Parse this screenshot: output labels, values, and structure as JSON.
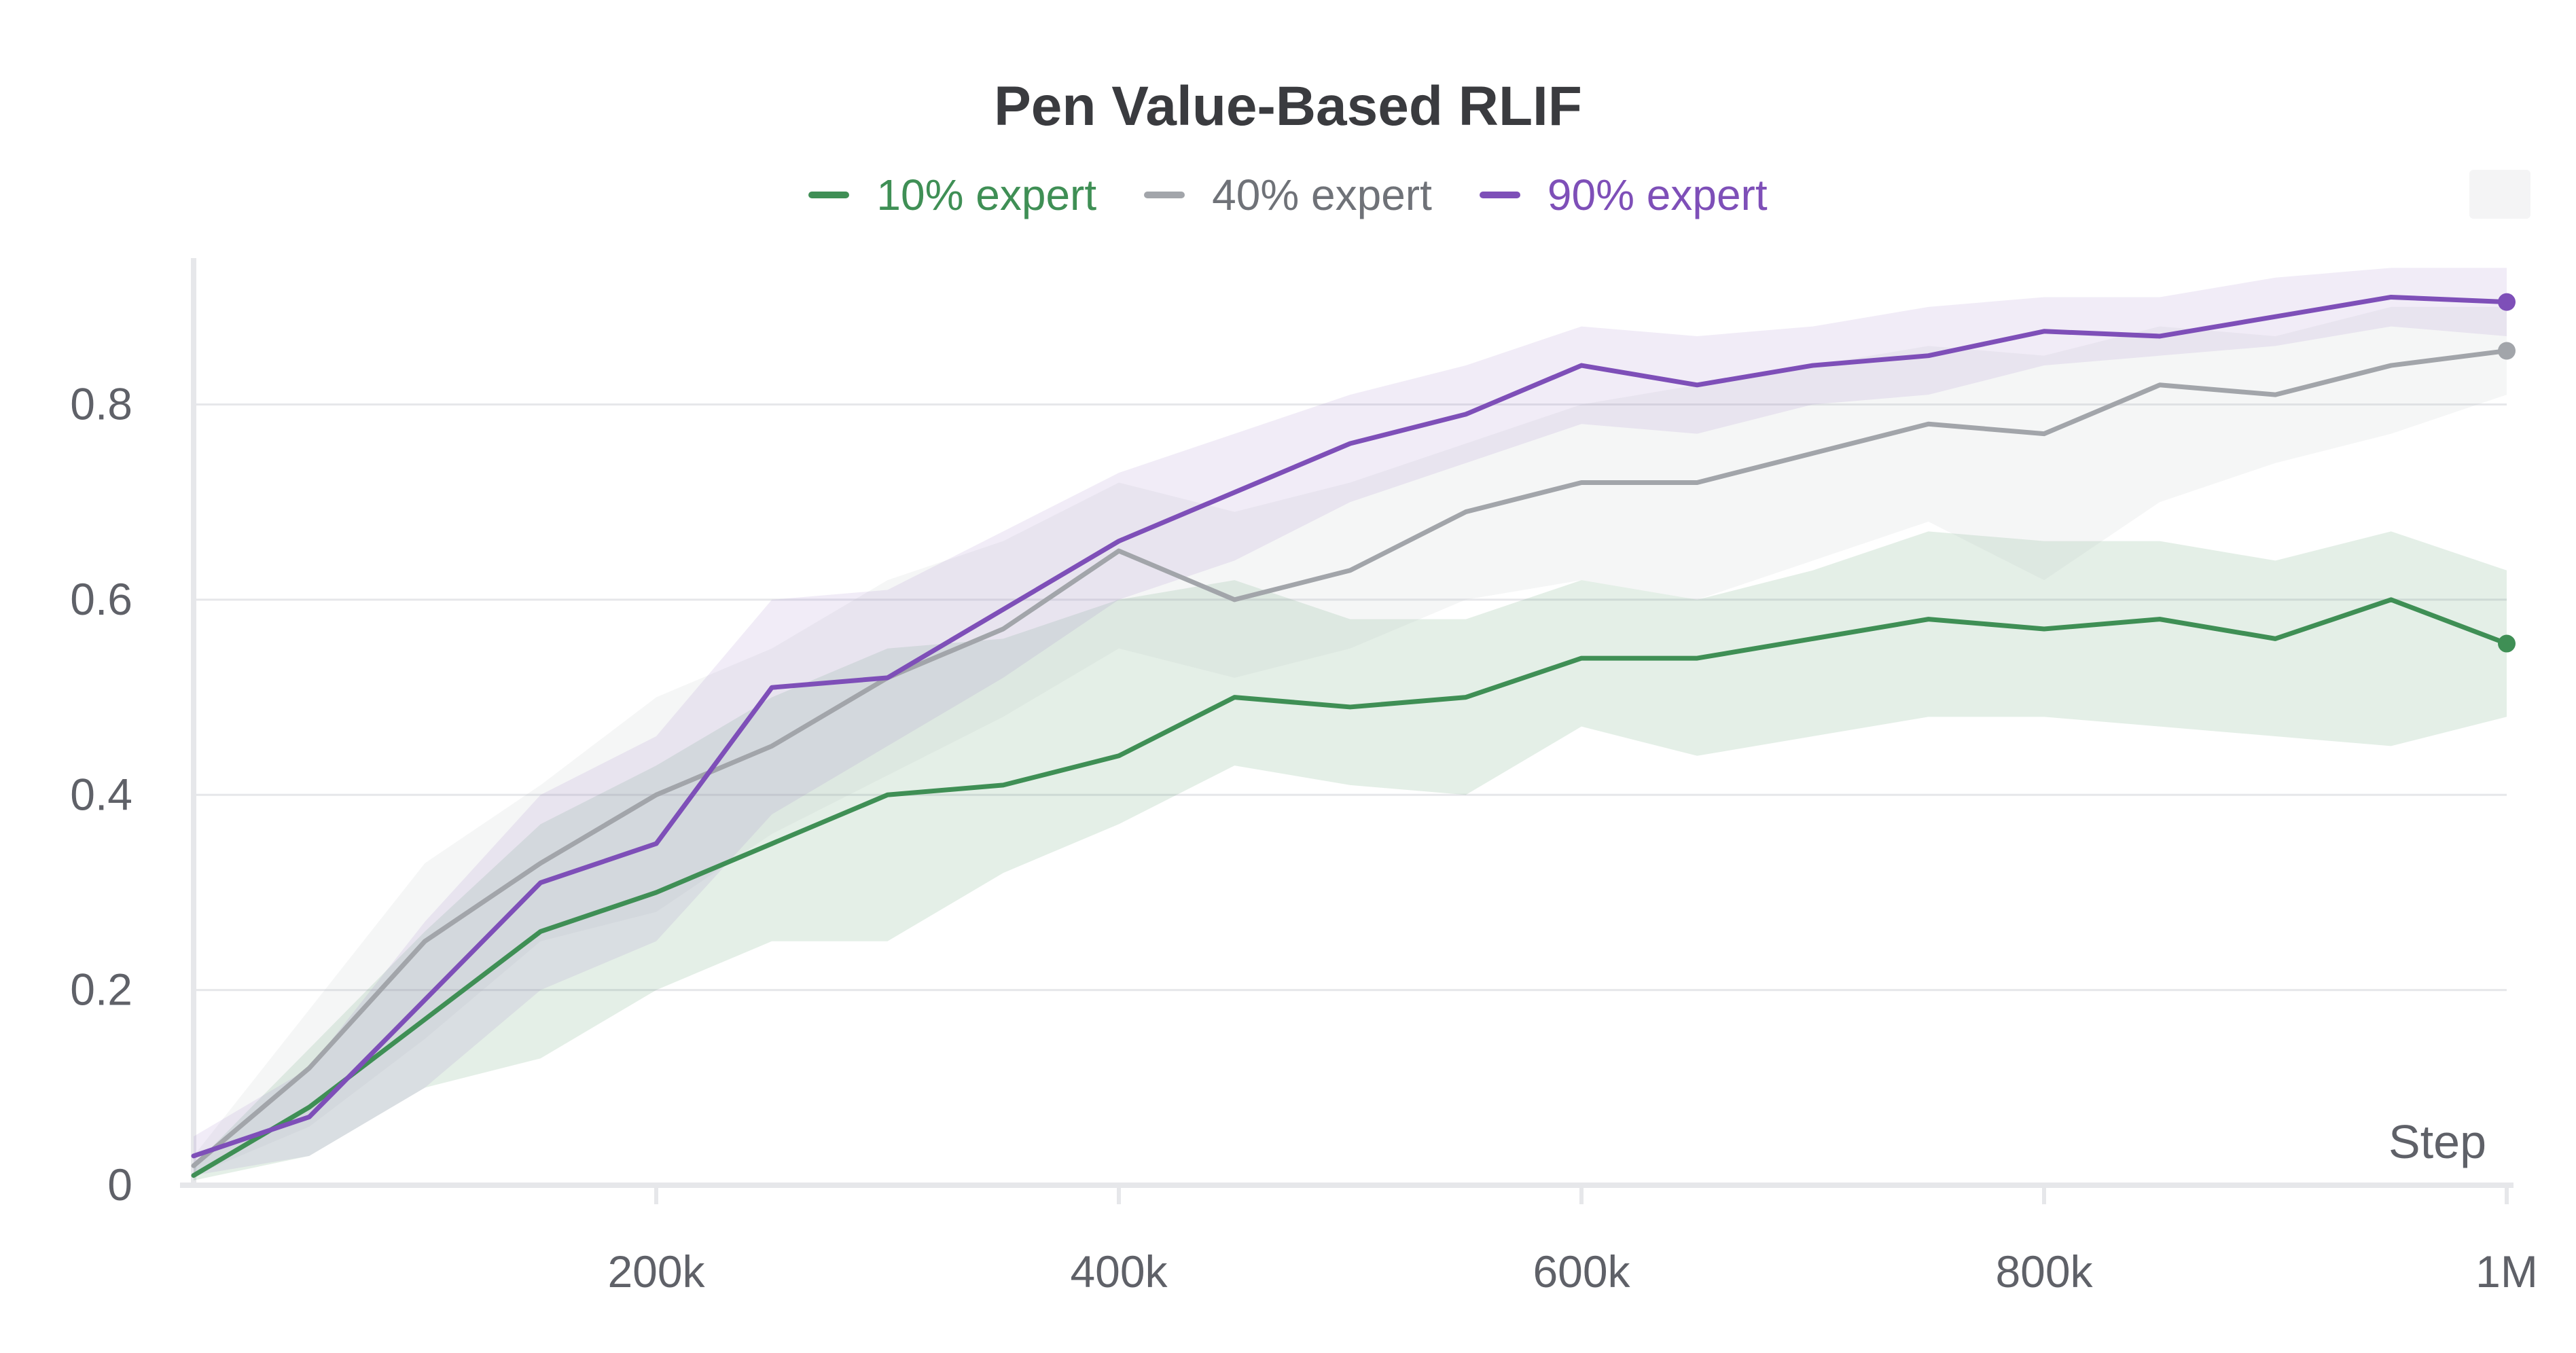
{
  "chart_data": {
    "type": "line",
    "title": "Pen Value-Based RLIF",
    "xlabel": "Step",
    "ylabel": "",
    "xlim": [
      0,
      1000000
    ],
    "ylim": [
      0,
      0.95
    ],
    "x_ticks": [
      200000,
      400000,
      600000,
      800000,
      1000000
    ],
    "x_tick_labels": [
      "200k",
      "400k",
      "600k",
      "800k",
      "1M"
    ],
    "y_ticks": [
      0,
      0.2,
      0.4,
      0.6,
      0.8
    ],
    "y_tick_labels": [
      "0",
      "0.2",
      "0.4",
      "0.6",
      "0.8"
    ],
    "grid": true,
    "legend_position": "top-center",
    "x": [
      0,
      50000,
      100000,
      150000,
      200000,
      250000,
      300000,
      350000,
      400000,
      450000,
      500000,
      550000,
      600000,
      650000,
      700000,
      750000,
      800000,
      850000,
      900000,
      950000,
      1000000
    ],
    "series": [
      {
        "name": "10% expert",
        "color": "#3f8f55",
        "band_color": "#3f8f55",
        "values": [
          0.01,
          0.08,
          0.17,
          0.26,
          0.3,
          0.35,
          0.4,
          0.41,
          0.44,
          0.5,
          0.49,
          0.5,
          0.54,
          0.54,
          0.56,
          0.58,
          0.57,
          0.58,
          0.56,
          0.6,
          0.555
        ],
        "lower": [
          0.005,
          0.03,
          0.1,
          0.13,
          0.2,
          0.25,
          0.25,
          0.32,
          0.37,
          0.43,
          0.41,
          0.4,
          0.47,
          0.44,
          0.46,
          0.48,
          0.48,
          0.47,
          0.46,
          0.45,
          0.48
        ],
        "upper": [
          0.02,
          0.14,
          0.26,
          0.37,
          0.43,
          0.5,
          0.55,
          0.56,
          0.6,
          0.62,
          0.58,
          0.58,
          0.62,
          0.6,
          0.63,
          0.67,
          0.66,
          0.66,
          0.64,
          0.67,
          0.63
        ]
      },
      {
        "name": "40% expert",
        "color": "#a2a5aa",
        "band_color": "#b9bcc2",
        "values": [
          0.02,
          0.12,
          0.25,
          0.33,
          0.4,
          0.45,
          0.52,
          0.57,
          0.65,
          0.6,
          0.63,
          0.69,
          0.72,
          0.72,
          0.75,
          0.78,
          0.77,
          0.82,
          0.81,
          0.84,
          0.855
        ],
        "lower": [
          0.01,
          0.06,
          0.15,
          0.25,
          0.28,
          0.36,
          0.42,
          0.48,
          0.55,
          0.52,
          0.55,
          0.6,
          0.62,
          0.6,
          0.64,
          0.68,
          0.62,
          0.7,
          0.74,
          0.77,
          0.81
        ],
        "upper": [
          0.03,
          0.18,
          0.33,
          0.41,
          0.5,
          0.55,
          0.62,
          0.66,
          0.72,
          0.69,
          0.72,
          0.76,
          0.8,
          0.82,
          0.84,
          0.86,
          0.85,
          0.88,
          0.87,
          0.9,
          0.9
        ]
      },
      {
        "name": "90% expert",
        "color": "#7e4fb8",
        "band_color": "#9a7bc9",
        "values": [
          0.03,
          0.07,
          0.19,
          0.31,
          0.35,
          0.51,
          0.52,
          0.59,
          0.66,
          0.71,
          0.76,
          0.79,
          0.84,
          0.82,
          0.84,
          0.85,
          0.875,
          0.87,
          0.89,
          0.91,
          0.905
        ],
        "lower": [
          0.01,
          0.03,
          0.1,
          0.2,
          0.25,
          0.38,
          0.45,
          0.52,
          0.6,
          0.64,
          0.7,
          0.74,
          0.78,
          0.77,
          0.8,
          0.81,
          0.84,
          0.85,
          0.86,
          0.88,
          0.87
        ],
        "upper": [
          0.05,
          0.12,
          0.27,
          0.4,
          0.46,
          0.6,
          0.61,
          0.67,
          0.73,
          0.77,
          0.81,
          0.84,
          0.88,
          0.87,
          0.88,
          0.9,
          0.91,
          0.91,
          0.93,
          0.94,
          0.94
        ]
      }
    ]
  }
}
